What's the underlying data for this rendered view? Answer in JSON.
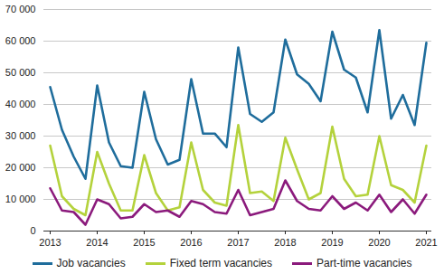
{
  "chart_data": {
    "type": "line",
    "categories": [
      "2013",
      null,
      null,
      null,
      "2014",
      null,
      null,
      null,
      "2015",
      null,
      null,
      null,
      "2016",
      null,
      null,
      null,
      "2017",
      null,
      null,
      null,
      "2018",
      null,
      null,
      null,
      "2019",
      null,
      null,
      null,
      "2020",
      null,
      null,
      null,
      "2021"
    ],
    "series": [
      {
        "name": "Job vacancies",
        "color": "#1f6d9c",
        "values": [
          45500,
          32000,
          23500,
          16500,
          46000,
          28000,
          20500,
          20000,
          44000,
          29000,
          21000,
          22500,
          48000,
          30800,
          30800,
          26500,
          58000,
          37000,
          34500,
          37500,
          60500,
          49500,
          46500,
          41000,
          63000,
          51000,
          48500,
          37500,
          63500,
          35500,
          43000,
          33500,
          59500
        ]
      },
      {
        "name": "Fixed term vacancies",
        "color": "#b4d23c",
        "values": [
          27000,
          11000,
          7000,
          5000,
          25000,
          15000,
          6500,
          6500,
          24000,
          12000,
          6500,
          7500,
          28000,
          13000,
          9000,
          8000,
          33500,
          12000,
          12500,
          9500,
          29500,
          19500,
          10000,
          12000,
          33000,
          16500,
          11000,
          11500,
          30000,
          14500,
          13000,
          9000,
          27000
        ]
      },
      {
        "name": "Part-time vacancies",
        "color": "#8b1a7c",
        "values": [
          13500,
          6500,
          6000,
          2000,
          10000,
          8500,
          4000,
          4500,
          8500,
          6000,
          6500,
          4500,
          9500,
          8500,
          6000,
          5500,
          13000,
          5000,
          6000,
          7000,
          16000,
          9500,
          7000,
          6500,
          11000,
          7000,
          9000,
          6500,
          11500,
          6000,
          10000,
          5500,
          11500
        ]
      }
    ],
    "ylim": [
      0,
      70000
    ],
    "yticks": [
      0,
      {
        "value": 10000,
        "label": "10 000"
      },
      {
        "value": 20000,
        "label": "20 000"
      },
      {
        "value": 30000,
        "label": "30 000"
      },
      {
        "value": 40000,
        "label": "40 000"
      },
      {
        "value": 50000,
        "label": "50 000"
      },
      {
        "value": 60000,
        "label": "60 000"
      },
      {
        "value": 70000,
        "label": "70 000"
      }
    ],
    "grid": true,
    "legend": "bottom"
  }
}
